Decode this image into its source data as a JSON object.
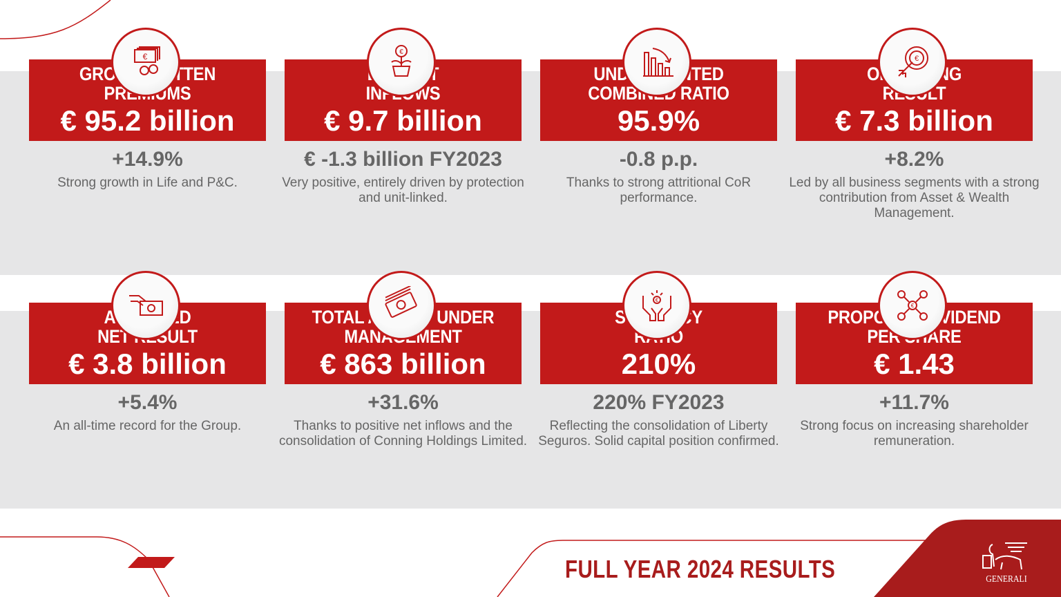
{
  "colors": {
    "accent": "#c21a1a",
    "dark_red": "#a81c1c",
    "band": "#e6e6e7",
    "text_grey": "#666666"
  },
  "cards": [
    {
      "icon": "banknotes-coins-icon",
      "title_line1": "GROSS WRITTEN",
      "title_line2": "PREMIUMS",
      "value": "€ 95.2 billion",
      "change": "+14.9%",
      "desc": "Strong growth in Life and P&C."
    },
    {
      "icon": "euro-plant-icon",
      "title_line1": "LIFE NET",
      "title_line2": "INFLOWS",
      "value": "€ 9.7 billion",
      "change": "€ -1.3 billion FY2023",
      "desc": "Very positive, entirely driven by protection and unit-linked."
    },
    {
      "icon": "bar-chart-down-icon",
      "title_line1": "UNDISCOUNTED",
      "title_line2": "COMBINED RATIO",
      "value": "95.9%",
      "change": "-0.8 p.p.",
      "desc": "Thanks to strong attritional CoR performance."
    },
    {
      "icon": "euro-target-arrow-icon",
      "title_line1": "OPERATING",
      "title_line2": "RESULT",
      "value": "€ 7.3 billion",
      "change": "+8.2%",
      "desc": "Led by all business segments with a strong contribution from Asset & Wealth Management."
    },
    {
      "icon": "hand-banknote-icon",
      "title_line1": "ADJUSTED",
      "title_line2": "NET RESULT",
      "value": "€ 3.8 billion",
      "change": "+5.4%",
      "desc": "An all-time record for the Group."
    },
    {
      "icon": "money-stack-icon",
      "title_line1": "TOTAL ASSETS UNDER",
      "title_line2": "MANAGEMENT",
      "value": "€ 863 billion",
      "change": "+31.6%",
      "desc": "Thanks to positive net inflows and the consolidation of Conning Holdings Limited."
    },
    {
      "icon": "hands-euro-icon",
      "title_line1": "SOLVENCY",
      "title_line2": "RATIO",
      "value": "210%",
      "change": "220% FY2023",
      "desc": "Reflecting the consolidation of Liberty Seguros. Solid capital position confirmed."
    },
    {
      "icon": "shareholders-network-icon",
      "title_line1": "PROPOSED DIVIDEND",
      "title_line2": "PER SHARE",
      "value": "€ 1.43",
      "change": "+11.7%",
      "desc": "Strong focus on increasing shareholder remuneration."
    }
  ],
  "footer": {
    "title": "FULL YEAR 2024 RESULTS",
    "logo_text": "GENERALI"
  }
}
